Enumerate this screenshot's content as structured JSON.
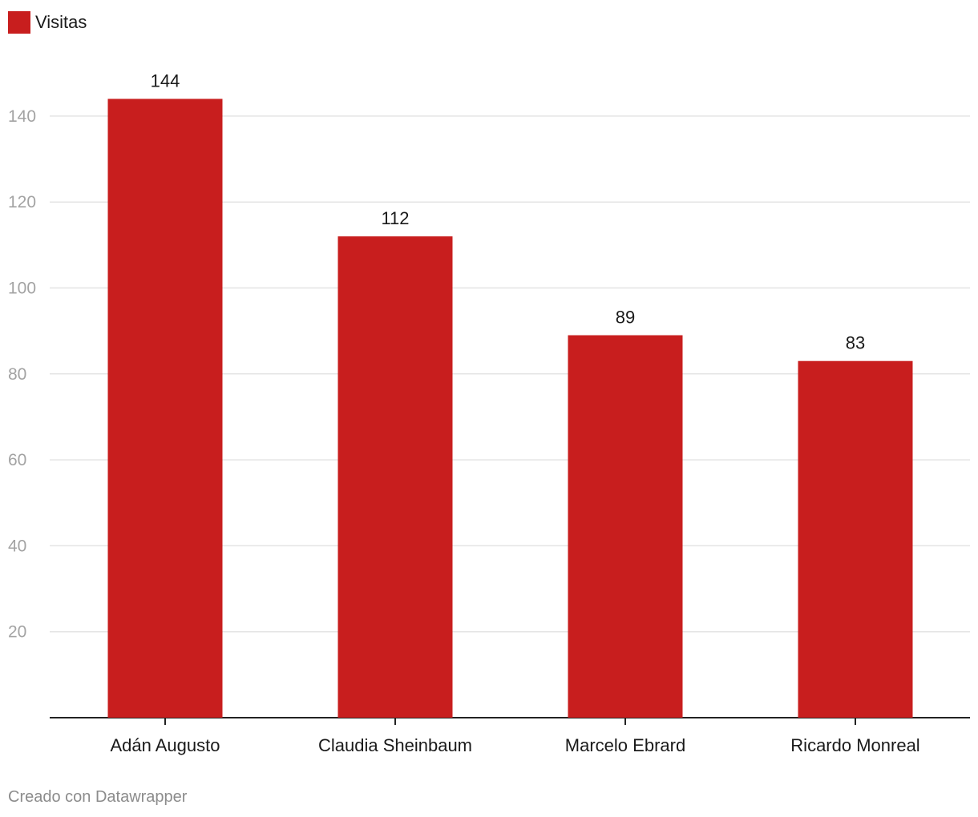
{
  "legend": {
    "label": "Visitas"
  },
  "footer": {
    "credit": "Creado con Datawrapper"
  },
  "colors": {
    "bar": "#c81e1e",
    "gridline": "#e4e4e4",
    "baseline": "#222222",
    "tick_label": "#a3a3a3",
    "text": "#1a1a1a"
  },
  "chart_data": {
    "type": "bar",
    "categories": [
      "Adán Augusto",
      "Claudia Sheinbaum",
      "Marcelo Ebrard",
      "Ricardo Monreal"
    ],
    "series": [
      {
        "name": "Visitas",
        "values": [
          144,
          112,
          89,
          83
        ]
      }
    ],
    "ylim": [
      0,
      150
    ],
    "yticks": [
      20,
      40,
      60,
      80,
      100,
      120,
      140
    ],
    "grid": true,
    "data_labels": true,
    "legend_position": "top-left"
  }
}
